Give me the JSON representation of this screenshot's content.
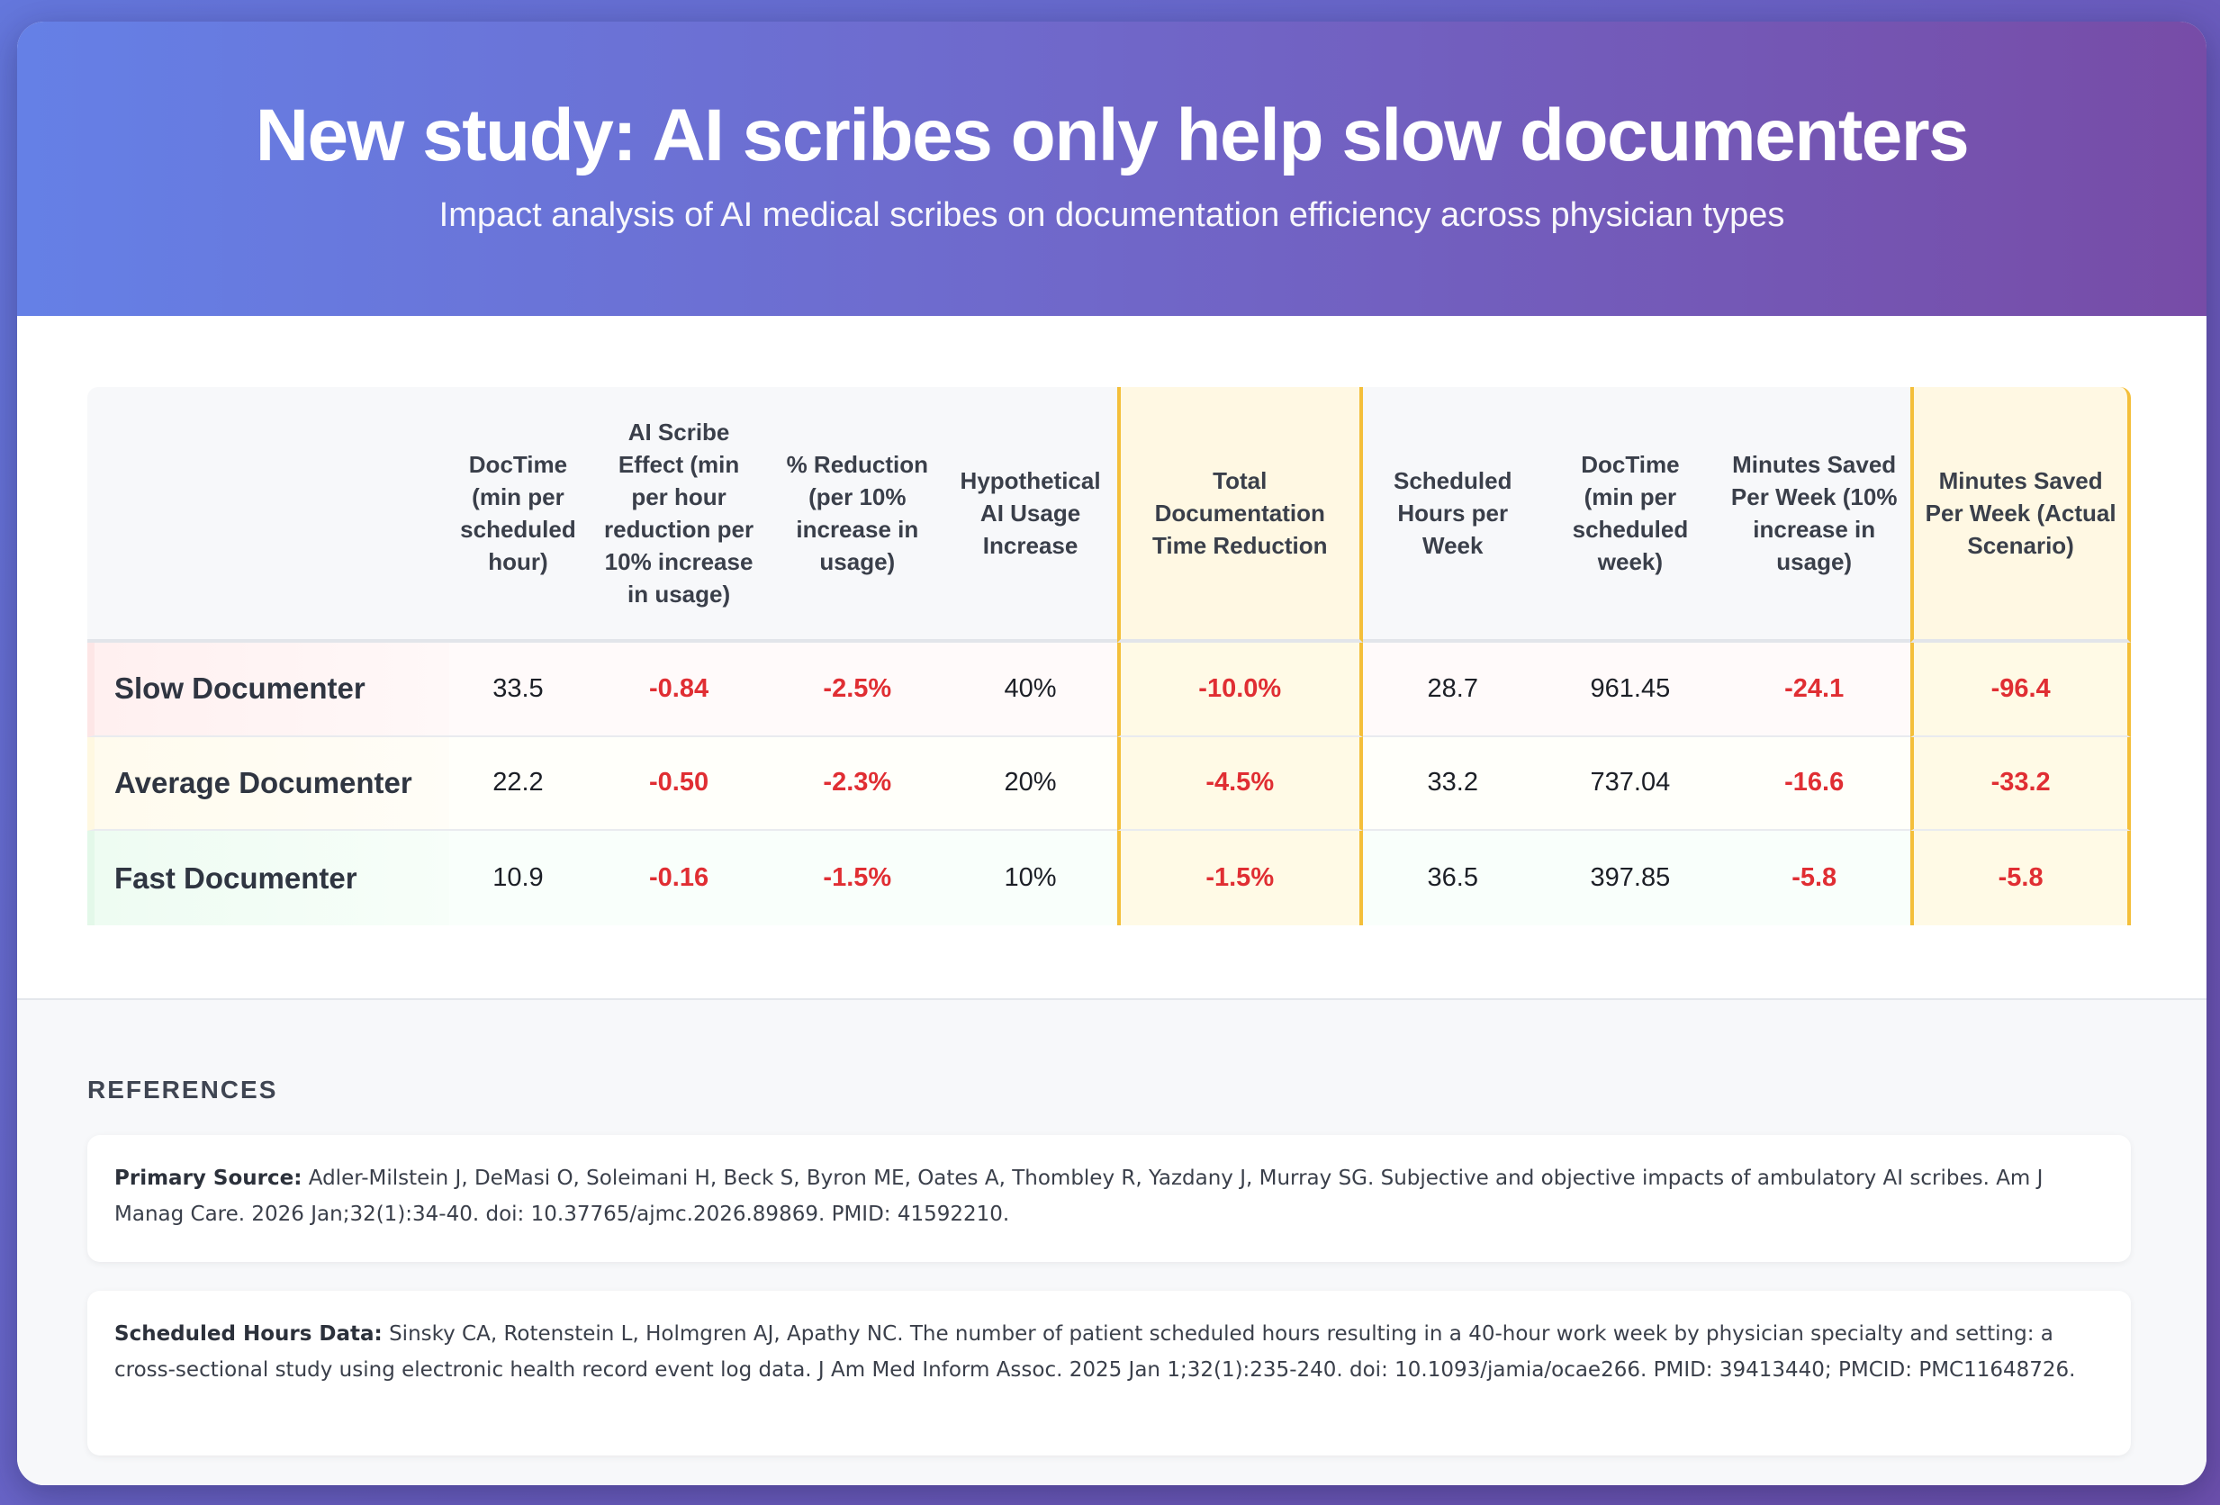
{
  "header": {
    "title": "New study: AI scribes only help slow documenters",
    "subtitle": "Impact analysis of AI medical scribes on documentation efficiency across physician types"
  },
  "table": {
    "columns": [
      "",
      "DocTime (min per scheduled hour)",
      "AI Scribe Effect (min per hour reduction per 10% increase in usage)",
      "% Reduction (per 10% increase in usage)",
      "Hypothetical AI Usage Increase",
      "Total Documentation Time Reduction",
      "Scheduled Hours per Week",
      "DocTime (min per scheduled week)",
      "Minutes Saved Per Week (10% increase in usage)",
      "Minutes Saved Per Week (Actual Scenario)"
    ],
    "rows": [
      {
        "label": "Slow Documenter",
        "doctime": "33.5",
        "effect": "-0.84",
        "pct": "-2.5%",
        "usage": "40%",
        "total": "-10.0%",
        "hours": "28.7",
        "week": "961.45",
        "saved10": "-24.1",
        "savedActual": "-96.4"
      },
      {
        "label": "Average Documenter",
        "doctime": "22.2",
        "effect": "-0.50",
        "pct": "-2.3%",
        "usage": "20%",
        "total": "-4.5%",
        "hours": "33.2",
        "week": "737.04",
        "saved10": "-16.6",
        "savedActual": "-33.2"
      },
      {
        "label": "Fast Documenter",
        "doctime": "10.9",
        "effect": "-0.16",
        "pct": "-1.5%",
        "usage": "10%",
        "total": "-1.5%",
        "hours": "36.5",
        "week": "397.85",
        "saved10": "-5.8",
        "savedActual": "-5.8"
      }
    ]
  },
  "references": {
    "title": "REFERENCES",
    "items": [
      {
        "label": "Primary Source:",
        "text": "Adler-Milstein J, DeMasi O, Soleimani H, Beck S, Byron ME, Oates A, Thombley R, Yazdany J, Murray SG. Subjective and objective impacts of ambulatory AI scribes. Am J Manag Care. 2026 Jan;32(1):34-40. doi: 10.37765/ajmc.2026.89869. PMID: 41592210."
      },
      {
        "label": "Scheduled Hours Data:",
        "text": "Sinsky CA, Rotenstein L, Holmgren AJ, Apathy NC. The number of patient scheduled hours resulting in a 40-hour work week by physician specialty and setting: a cross-sectional study using electronic health record event log data. J Am Med Inform Assoc. 2025 Jan 1;32(1):235-240. doi: 10.1093/jamia/ocae266. PMID: 39413440; PMCID: PMC11648726."
      }
    ]
  }
}
